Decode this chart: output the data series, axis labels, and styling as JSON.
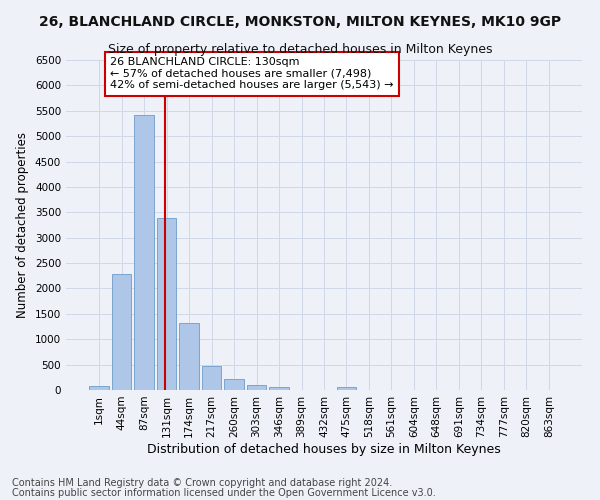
{
  "title": "26, BLANCHLAND CIRCLE, MONKSTON, MILTON KEYNES, MK10 9GP",
  "subtitle": "Size of property relative to detached houses in Milton Keynes",
  "xlabel": "Distribution of detached houses by size in Milton Keynes",
  "ylabel": "Number of detached properties",
  "footnote1": "Contains HM Land Registry data © Crown copyright and database right 2024.",
  "footnote2": "Contains public sector information licensed under the Open Government Licence v3.0.",
  "bar_labels": [
    "1sqm",
    "44sqm",
    "87sqm",
    "131sqm",
    "174sqm",
    "217sqm",
    "260sqm",
    "303sqm",
    "346sqm",
    "389sqm",
    "432sqm",
    "475sqm",
    "518sqm",
    "561sqm",
    "604sqm",
    "648sqm",
    "691sqm",
    "734sqm",
    "777sqm",
    "820sqm",
    "863sqm"
  ],
  "bar_values": [
    70,
    2280,
    5420,
    3380,
    1310,
    480,
    215,
    105,
    60,
    0,
    0,
    60,
    0,
    0,
    0,
    0,
    0,
    0,
    0,
    0,
    0
  ],
  "bar_color": "#aec6e8",
  "bar_edge_color": "#5a8fc2",
  "grid_color": "#d0d8e8",
  "vline_x_index": 3,
  "annotation_text": "26 BLANCHLAND CIRCLE: 130sqm\n← 57% of detached houses are smaller (7,498)\n42% of semi-detached houses are larger (5,543) →",
  "annotation_box_color": "#ffffff",
  "annotation_box_edgecolor": "#cc0000",
  "vline_color": "#cc0000",
  "ylim_max": 6500,
  "yticks": [
    0,
    500,
    1000,
    1500,
    2000,
    2500,
    3000,
    3500,
    4000,
    4500,
    5000,
    5500,
    6000,
    6500
  ],
  "background_color": "#eef2f8",
  "title_fontsize": 10,
  "subtitle_fontsize": 9,
  "xlabel_fontsize": 9,
  "ylabel_fontsize": 8.5,
  "tick_fontsize": 7.5,
  "annotation_fontsize": 8,
  "footnote_fontsize": 7
}
